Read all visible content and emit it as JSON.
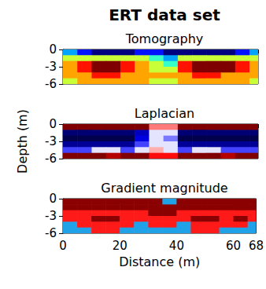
{
  "chart_data": {
    "title": "ERT data set",
    "xlabel": "Distance (m)",
    "ylabel": "Depth (m)",
    "panels": [
      {
        "type": "heatmap",
        "title": "Tomography",
        "tick_labels": "y",
        "colors": [
          "#00007f",
          "#0000ff",
          "#007fff",
          "#00ffff",
          "#7fff7f",
          "#ffff00",
          "#ff7f00",
          "#ff0000",
          "#7f0000"
        ],
        "x": [
          2.5,
          7.5,
          12.5,
          17.5,
          22.5,
          27.5,
          32.5,
          37.5,
          42.5,
          47.5,
          52.5,
          57.5,
          62.5,
          67.5
        ],
        "y": [
          -0.5,
          -1.5,
          -2.5,
          -3.5,
          -4.5,
          -5.5
        ],
        "z": [
          [
            3,
            2,
            1,
            1,
            1,
            2,
            2,
            1,
            1,
            1,
            1,
            1,
            2,
            3
          ],
          [
            5,
            5,
            5,
            5,
            5,
            5,
            4,
            3,
            5,
            5,
            5,
            5,
            5,
            5
          ],
          [
            6,
            7,
            8,
            8,
            7,
            6,
            5,
            4,
            7,
            8,
            8,
            8,
            7,
            6
          ],
          [
            6,
            7,
            8,
            8,
            7,
            6,
            5,
            5,
            7,
            8,
            8,
            8,
            7,
            6
          ],
          [
            6,
            6,
            7,
            7,
            6,
            6,
            6,
            6,
            6,
            7,
            7,
            6,
            6,
            6
          ],
          [
            5,
            6,
            6,
            6,
            6,
            6,
            5,
            5,
            6,
            6,
            6,
            6,
            6,
            5
          ]
        ],
        "xlim": [
          0,
          68
        ],
        "xticks": [
          0,
          20,
          40,
          60
        ],
        "ylim": [
          -6,
          0
        ],
        "yticks": [
          -6,
          -3,
          0
        ]
      },
      {
        "type": "heatmap",
        "title": "Laplacian",
        "tick_labels": "y",
        "colors": [
          "#00004c",
          "#0000ff",
          "#ffffff",
          "#ff0000",
          "#800000"
        ],
        "x": [
          2.5,
          7.5,
          12.5,
          17.5,
          22.5,
          27.5,
          32.5,
          37.5,
          42.5,
          47.5,
          52.5,
          57.5,
          62.5,
          67.5
        ],
        "y": [
          -0.5,
          -1.5,
          -2.5,
          -3.5,
          -4.5,
          -5.5
        ],
        "z": [
          [
            1,
            1,
            1,
            1,
            1,
            1,
            0.3,
            0.3,
            1,
            1,
            1,
            1,
            1,
            1
          ],
          [
            -0.8,
            -0.8,
            -0.8,
            -0.8,
            -0.8,
            -0.6,
            0,
            0,
            -0.8,
            -0.8,
            -0.8,
            -0.8,
            -0.8,
            -0.8
          ],
          [
            -0.9,
            -0.9,
            -0.9,
            -0.9,
            -0.9,
            -0.5,
            0,
            -0.2,
            -0.9,
            -0.9,
            -0.9,
            -0.9,
            -0.9,
            -0.9
          ],
          [
            -0.7,
            -0.7,
            -0.7,
            -0.7,
            -0.7,
            -0.3,
            0,
            0,
            -0.7,
            -0.7,
            -0.7,
            -0.7,
            -0.7,
            -0.7
          ],
          [
            -0.3,
            -0.3,
            0,
            0,
            -0.3,
            0,
            0.2,
            0,
            -0.3,
            0,
            0,
            -0.3,
            -0.3,
            -0.3
          ],
          [
            1,
            1,
            1,
            0.8,
            1,
            1,
            0.5,
            0.5,
            1,
            1,
            1,
            0.8,
            1,
            1
          ]
        ],
        "xlim": [
          0,
          68
        ],
        "xticks": [
          0,
          20,
          40,
          60
        ],
        "ylim": [
          -6,
          0
        ],
        "yticks": [
          -6,
          -3,
          0
        ]
      },
      {
        "type": "heatmap",
        "title": "Gradient magnitude",
        "tick_labels": true,
        "colors": [
          "#1fa2e8",
          "#ff1a1a",
          "#8b0000"
        ],
        "x": [
          2.5,
          7.5,
          12.5,
          17.5,
          22.5,
          27.5,
          32.5,
          37.5,
          42.5,
          47.5,
          52.5,
          57.5,
          62.5,
          67.5
        ],
        "y": [
          -0.5,
          -1.5,
          -2.5,
          -3.5,
          -4.5,
          -5.5
        ],
        "z": [
          [
            2,
            2,
            2,
            2,
            2,
            2,
            2,
            0,
            2,
            2,
            2,
            2,
            2,
            2
          ],
          [
            2,
            2,
            2,
            2,
            2,
            2,
            2,
            2,
            2,
            2,
            2,
            2,
            2,
            2
          ],
          [
            1,
            1,
            1,
            1,
            1,
            1,
            2,
            2,
            1,
            1,
            1,
            1,
            1,
            1
          ],
          [
            1,
            1,
            2,
            2,
            1,
            1,
            1,
            1,
            1,
            2,
            2,
            1,
            2,
            1
          ],
          [
            0,
            1,
            1,
            1,
            1,
            0,
            1,
            1,
            0,
            1,
            1,
            1,
            1,
            0
          ],
          [
            0,
            0,
            1,
            1,
            0,
            0,
            0,
            0,
            0,
            1,
            1,
            0,
            0,
            0
          ]
        ],
        "xlim": [
          0,
          68
        ],
        "xticks": [
          0,
          20,
          40,
          60
        ],
        "ylim": [
          -6,
          0
        ],
        "yticks": [
          -6,
          -3,
          0
        ]
      }
    ]
  }
}
